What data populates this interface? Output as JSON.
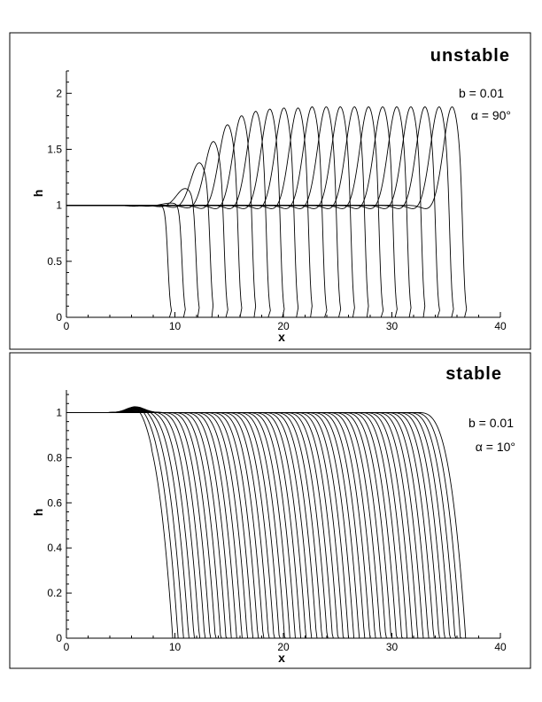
{
  "chart_data": [
    {
      "type": "line",
      "title": "unstable",
      "xlabel": "x",
      "ylabel": "h",
      "xlim": [
        0,
        40
      ],
      "ylim": [
        0,
        2.2
      ],
      "xticks": [
        "0",
        "10",
        "20",
        "30",
        "40"
      ],
      "yticks": [
        "0",
        "0.5",
        "1",
        "1.5",
        "2"
      ],
      "annotations": [
        "b = 0.01",
        "α = 90°"
      ],
      "front_positions": [
        9.4,
        10.7,
        12.0,
        13.3,
        14.6,
        15.9,
        17.2,
        18.5,
        19.8,
        21.1,
        22.4,
        23.7,
        25.0,
        26.3,
        27.6,
        28.9,
        30.2,
        31.5,
        32.8,
        34.1,
        35.4,
        36.6
      ],
      "peak_heights": [
        1.0,
        1.02,
        1.15,
        1.38,
        1.57,
        1.72,
        1.8,
        1.84,
        1.86,
        1.87,
        1.87,
        1.88,
        1.88,
        1.88,
        1.88,
        1.88,
        1.88,
        1.88,
        1.88,
        1.88,
        1.88,
        1.88
      ]
    },
    {
      "type": "line",
      "title": "stable",
      "xlabel": "x",
      "ylabel": "h",
      "xlim": [
        0,
        40
      ],
      "ylim": [
        0,
        1.1
      ],
      "xticks": [
        "0",
        "10",
        "20",
        "30",
        "40"
      ],
      "yticks": [
        "0",
        "0.2",
        "0.4",
        "0.6",
        "0.8",
        "1"
      ],
      "annotations": [
        "b = 0.01",
        "α = 10°"
      ],
      "front_start": 9.8,
      "front_end": 36.8,
      "curve_count": 56,
      "bump_height": 1.03
    }
  ]
}
